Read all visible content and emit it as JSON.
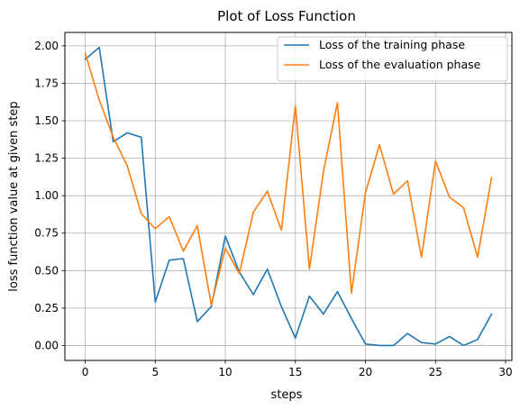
{
  "chart_data": {
    "type": "line",
    "title": "Plot of Loss Function",
    "xlabel": "steps",
    "ylabel": "loss function value at given step",
    "xlim": [
      -1.45,
      30.45
    ],
    "ylim": [
      -0.0995,
      2.0895
    ],
    "xticks": [
      0,
      5,
      10,
      15,
      20,
      25,
      30
    ],
    "yticks": [
      0.0,
      0.25,
      0.5,
      0.75,
      1.0,
      1.25,
      1.5,
      1.75,
      2.0
    ],
    "ytick_labels": [
      "0.00",
      "0.25",
      "0.50",
      "0.75",
      "1.00",
      "1.25",
      "1.50",
      "1.75",
      "2.00"
    ],
    "grid": true,
    "legend_position": "top-right",
    "x": [
      0,
      1,
      2,
      3,
      4,
      5,
      6,
      7,
      8,
      9,
      10,
      11,
      12,
      13,
      14,
      15,
      16,
      17,
      18,
      19,
      20,
      21,
      22,
      23,
      24,
      25,
      26,
      27,
      28,
      29
    ],
    "series": [
      {
        "name": "Loss of the training phase",
        "color": "#1f77b4",
        "values": [
          1.91,
          1.99,
          1.36,
          1.42,
          1.39,
          0.29,
          0.57,
          0.58,
          0.16,
          0.26,
          0.73,
          0.49,
          0.34,
          0.51,
          0.26,
          0.05,
          0.33,
          0.21,
          0.36,
          0.18,
          0.01,
          0.0,
          0.0,
          0.08,
          0.02,
          0.01,
          0.06,
          0.0,
          0.04,
          0.21
        ]
      },
      {
        "name": "Loss of the evaluation phase",
        "color": "#ff7f0e",
        "values": [
          1.95,
          1.64,
          1.39,
          1.2,
          0.88,
          0.78,
          0.86,
          0.63,
          0.8,
          0.27,
          0.65,
          0.48,
          0.89,
          1.03,
          0.77,
          1.6,
          0.51,
          1.16,
          1.62,
          0.35,
          1.02,
          1.34,
          1.01,
          1.1,
          0.59,
          1.23,
          0.99,
          0.92,
          0.59,
          1.12
        ]
      }
    ]
  }
}
